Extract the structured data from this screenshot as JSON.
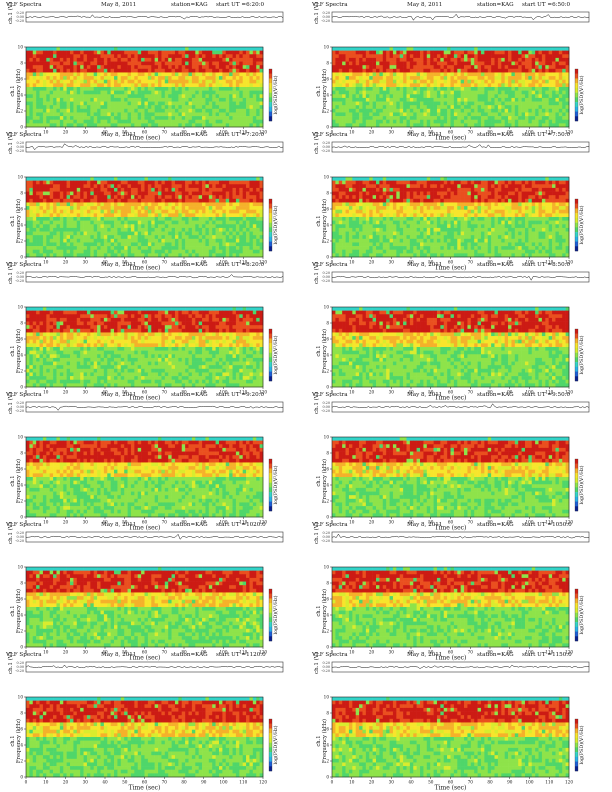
{
  "header": {
    "title": "VLF Spectra",
    "date": "May 8, 2011",
    "station": "station=KAG",
    "start_prefix": "start  UT"
  },
  "axes": {
    "channel_label": "ch.1 (V)",
    "frequency_label": "Frequency  (kHz)",
    "channel_label_left": "ch.1",
    "time_label": "Time  (sec)",
    "colorbar_label": "log(PSD)(V²/Hz)",
    "voltage_ticks": [
      "0.20",
      "0.00",
      "-0.20"
    ]
  },
  "chart_data": [
    {
      "type": "heatmap",
      "title": "VLF Spectra",
      "start_ut": "=6:20:0",
      "xlabel": "Time (sec)",
      "ylabel": "Frequency (kHz)",
      "xlim": [
        0,
        120
      ],
      "ylim": [
        0,
        10
      ],
      "x_ticks": [
        "0",
        "10",
        "20",
        "30",
        "40",
        "50",
        "60",
        "70",
        "80",
        "90",
        "100",
        "110",
        "120"
      ],
      "y_ticks": [
        "0",
        "2",
        "4",
        "6",
        "8",
        "10"
      ],
      "colorbar_position": "right"
    },
    {
      "type": "heatmap",
      "title": "VLF Spectra",
      "start_ut": "=6:50:0",
      "xlabel": "Time (sec)",
      "ylabel": "Frequency (kHz)",
      "xlim": [
        0,
        120
      ],
      "ylim": [
        0,
        10
      ],
      "x_ticks": [
        "0",
        "10",
        "20",
        "30",
        "40",
        "50",
        "60",
        "70",
        "80",
        "90",
        "100",
        "110",
        "120"
      ],
      "y_ticks": [
        "0",
        "2",
        "4",
        "6",
        "8",
        "10"
      ],
      "colorbar_position": "right"
    },
    {
      "type": "heatmap",
      "title": "VLF Spectra",
      "start_ut": "=7:20:0",
      "xlabel": "Time (sec)",
      "ylabel": "Frequency (kHz)",
      "xlim": [
        0,
        120
      ],
      "ylim": [
        0,
        10
      ],
      "x_ticks": [
        "0",
        "10",
        "20",
        "30",
        "40",
        "50",
        "60",
        "70",
        "80",
        "90",
        "100",
        "110",
        "120"
      ],
      "y_ticks": [
        "0",
        "2",
        "4",
        "6",
        "8",
        "10"
      ],
      "colorbar_position": "right"
    },
    {
      "type": "heatmap",
      "title": "VLF Spectra",
      "start_ut": "=7:50:0",
      "xlabel": "Time (sec)",
      "ylabel": "Frequency (kHz)",
      "xlim": [
        0,
        120
      ],
      "ylim": [
        0,
        10
      ],
      "x_ticks": [
        "0",
        "10",
        "20",
        "30",
        "40",
        "50",
        "60",
        "70",
        "80",
        "90",
        "100",
        "110",
        "120"
      ],
      "y_ticks": [
        "0",
        "2",
        "4",
        "6",
        "8",
        "10"
      ],
      "colorbar_position": "right"
    },
    {
      "type": "heatmap",
      "title": "VLF Spectra",
      "start_ut": "=8:20:0",
      "xlabel": "Time (sec)",
      "ylabel": "Frequency (kHz)",
      "xlim": [
        0,
        120
      ],
      "ylim": [
        0,
        10
      ],
      "x_ticks": [
        "0",
        "10",
        "20",
        "30",
        "40",
        "50",
        "60",
        "70",
        "80",
        "90",
        "100",
        "110",
        "120"
      ],
      "y_ticks": [
        "0",
        "2",
        "4",
        "6",
        "8",
        "10"
      ],
      "colorbar_position": "right"
    },
    {
      "type": "heatmap",
      "title": "VLF Spectra",
      "start_ut": "=8:50:0",
      "xlabel": "Time (sec)",
      "ylabel": "Frequency (kHz)",
      "xlim": [
        0,
        120
      ],
      "ylim": [
        0,
        10
      ],
      "x_ticks": [
        "0",
        "10",
        "20",
        "30",
        "40",
        "50",
        "60",
        "70",
        "80",
        "90",
        "100",
        "110",
        "120"
      ],
      "y_ticks": [
        "0",
        "2",
        "4",
        "6",
        "8",
        "10"
      ],
      "colorbar_position": "right"
    },
    {
      "type": "heatmap",
      "title": "VLF Spectra",
      "start_ut": "=9:20:0",
      "xlabel": "Time (sec)",
      "ylabel": "Frequency (kHz)",
      "xlim": [
        0,
        120
      ],
      "ylim": [
        0,
        10
      ],
      "x_ticks": [
        "0",
        "10",
        "20",
        "30",
        "40",
        "50",
        "60",
        "70",
        "80",
        "90",
        "100",
        "110",
        "120"
      ],
      "y_ticks": [
        "0",
        "2",
        "4",
        "6",
        "8",
        "10"
      ],
      "colorbar_position": "right"
    },
    {
      "type": "heatmap",
      "title": "VLF Spectra",
      "start_ut": "=9:50:0",
      "xlabel": "Time (sec)",
      "ylabel": "Frequency (kHz)",
      "xlim": [
        0,
        120
      ],
      "ylim": [
        0,
        10
      ],
      "x_ticks": [
        "0",
        "10",
        "20",
        "30",
        "40",
        "50",
        "60",
        "70",
        "80",
        "90",
        "100",
        "110",
        "120"
      ],
      "y_ticks": [
        "0",
        "2",
        "4",
        "6",
        "8",
        "10"
      ],
      "colorbar_position": "right"
    },
    {
      "type": "heatmap",
      "title": "VLF Spectra",
      "start_ut": "=1020:0",
      "xlabel": "Time (sec)",
      "ylabel": "Frequency (kHz)",
      "xlim": [
        0,
        120
      ],
      "ylim": [
        0,
        10
      ],
      "x_ticks": [
        "0",
        "10",
        "20",
        "30",
        "40",
        "50",
        "60",
        "70",
        "80",
        "90",
        "100",
        "110",
        "120"
      ],
      "y_ticks": [
        "0",
        "2",
        "4",
        "6",
        "8",
        "10"
      ],
      "colorbar_position": "right"
    },
    {
      "type": "heatmap",
      "title": "VLF Spectra",
      "start_ut": "=1050:0",
      "xlabel": "Time (sec)",
      "ylabel": "Frequency (kHz)",
      "xlim": [
        0,
        120
      ],
      "ylim": [
        0,
        10
      ],
      "x_ticks": [
        "0",
        "10",
        "20",
        "30",
        "40",
        "50",
        "60",
        "70",
        "80",
        "90",
        "100",
        "110",
        "120"
      ],
      "y_ticks": [
        "0",
        "2",
        "4",
        "6",
        "8",
        "10"
      ],
      "colorbar_position": "right"
    },
    {
      "type": "heatmap",
      "title": "VLF Spectra",
      "start_ut": "=1120:0",
      "xlabel": "Time (sec)",
      "ylabel": "Frequency (kHz)",
      "xlim": [
        0,
        120
      ],
      "ylim": [
        0,
        10
      ],
      "x_ticks": [
        "0",
        "10",
        "20",
        "30",
        "40",
        "50",
        "60",
        "70",
        "80",
        "90",
        "100",
        "110",
        "120"
      ],
      "y_ticks": [
        "0",
        "2",
        "4",
        "6",
        "8",
        "10"
      ],
      "colorbar_position": "right"
    },
    {
      "type": "heatmap",
      "title": "VLF Spectra",
      "start_ut": "=1150:0",
      "xlabel": "Time (sec)",
      "ylabel": "Frequency (kHz)",
      "xlim": [
        0,
        120
      ],
      "ylim": [
        0,
        10
      ],
      "x_ticks": [
        "0",
        "10",
        "20",
        "30",
        "40",
        "50",
        "60",
        "70",
        "80",
        "90",
        "100",
        "110",
        "120"
      ],
      "y_ticks": [
        "0",
        "2",
        "4",
        "6",
        "8",
        "10"
      ],
      "colorbar_position": "right"
    }
  ]
}
